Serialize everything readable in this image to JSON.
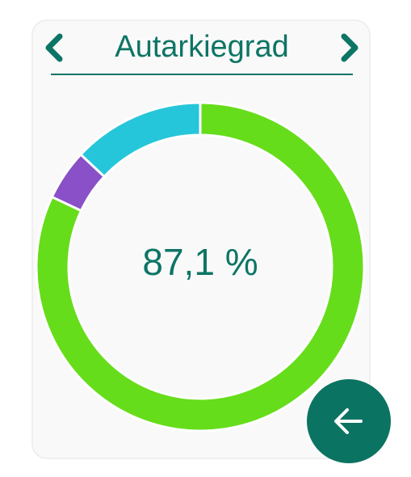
{
  "chart_data": {
    "type": "donut",
    "title": "Autarkiegrad",
    "center_label": "87,1 %",
    "values": [
      82,
      5,
      13
    ],
    "colors": [
      "#66dd1b",
      "#8950c7",
      "#26c6da"
    ]
  }
}
